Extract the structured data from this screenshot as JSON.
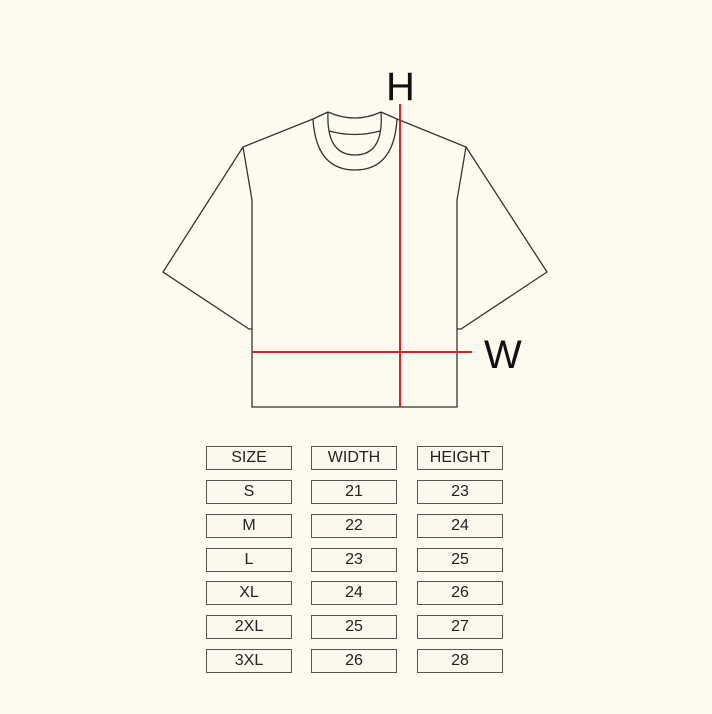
{
  "diagram": {
    "height_label": "H",
    "width_label": "W",
    "measure_color": "#e02020",
    "outline_color": "#333333"
  },
  "size_table": {
    "headers": [
      "SIZE",
      "WIDTH",
      "HEIGHT"
    ],
    "rows": [
      [
        "S",
        "21",
        "23"
      ],
      [
        "M",
        "22",
        "24"
      ],
      [
        "L",
        "23",
        "25"
      ],
      [
        "XL",
        "24",
        "26"
      ],
      [
        "2XL",
        "25",
        "27"
      ],
      [
        "3XL",
        "26",
        "28"
      ]
    ]
  }
}
